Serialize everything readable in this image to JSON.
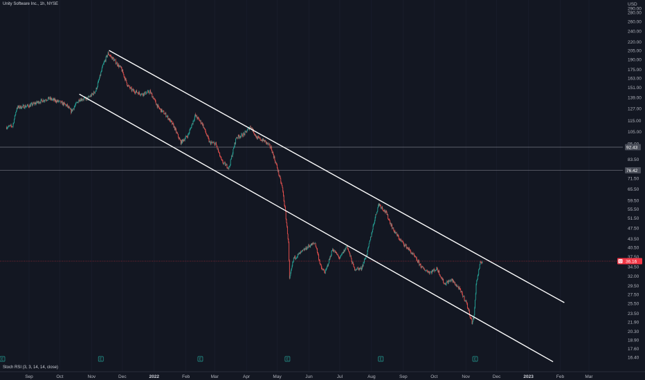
{
  "header": {
    "title": "Unity Software Inc., 1h, NYSE"
  },
  "indicator": {
    "label": "Stoch RSI (3, 3, 14, 14, close)"
  },
  "colors": {
    "background": "#131722",
    "up": "#26a69a",
    "down": "#ef5350",
    "trendline": "#ffffff",
    "priceTag": "#f23645",
    "hline": "#787b86"
  },
  "chart_data": {
    "type": "candlestick",
    "symbol": "Unity Software Inc.",
    "interval": "1h",
    "exchange": "NYSE",
    "currency": "USD",
    "y_scale": "log",
    "ylim": [
      15.8,
      290
    ],
    "y_ticks": [
      "290.00",
      "280.00",
      "260.00",
      "240.00",
      "220.00",
      "205.00",
      "190.00",
      "175.00",
      "163.00",
      "151.00",
      "139.00",
      "127.00",
      "115.00",
      "105.00",
      "95.00",
      "83.50",
      "76.50",
      "71.50",
      "65.50",
      "59.50",
      "55.50",
      "51.50",
      "47.50",
      "43.50",
      "40.50",
      "37.50",
      "34.50",
      "32.00",
      "29.50",
      "27.50",
      "25.50",
      "23.50",
      "21.90",
      "20.30",
      "18.90",
      "17.60",
      "16.40"
    ],
    "x_ticks": [
      {
        "label": "Sep",
        "date": "2021-09-01",
        "bold": false
      },
      {
        "label": "Oct",
        "date": "2021-10-01",
        "bold": false
      },
      {
        "label": "Nov",
        "date": "2021-11-01",
        "bold": false
      },
      {
        "label": "Dec",
        "date": "2021-12-01",
        "bold": false
      },
      {
        "label": "2022",
        "date": "2022-01-01",
        "bold": true
      },
      {
        "label": "Feb",
        "date": "2022-02-01",
        "bold": false
      },
      {
        "label": "Mar",
        "date": "2022-03-01",
        "bold": false
      },
      {
        "label": "Apr",
        "date": "2022-04-01",
        "bold": false
      },
      {
        "label": "May",
        "date": "2022-05-01",
        "bold": false
      },
      {
        "label": "Jun",
        "date": "2022-06-01",
        "bold": false
      },
      {
        "label": "Jul",
        "date": "2022-07-01",
        "bold": false
      },
      {
        "label": "Aug",
        "date": "2022-08-01",
        "bold": false
      },
      {
        "label": "Sep",
        "date": "2022-09-01",
        "bold": false
      },
      {
        "label": "Oct",
        "date": "2022-10-01",
        "bold": false
      },
      {
        "label": "Nov",
        "date": "2022-11-01",
        "bold": false
      },
      {
        "label": "Dec",
        "date": "2022-12-01",
        "bold": false
      },
      {
        "label": "2023",
        "date": "2023-01-01",
        "bold": true
      },
      {
        "label": "Feb",
        "date": "2023-02-01",
        "bold": false
      },
      {
        "label": "Mar",
        "date": "2023-03-01",
        "bold": false
      }
    ],
    "price_path": [
      [
        "2021-08-10",
        109
      ],
      [
        "2021-08-16",
        110
      ],
      [
        "2021-08-20",
        128
      ],
      [
        "2021-09-01",
        130
      ],
      [
        "2021-09-10",
        134
      ],
      [
        "2021-09-20",
        138
      ],
      [
        "2021-10-01",
        134
      ],
      [
        "2021-10-08",
        130
      ],
      [
        "2021-10-12",
        124
      ],
      [
        "2021-10-20",
        137
      ],
      [
        "2021-10-28",
        138
      ],
      [
        "2021-11-01",
        142
      ],
      [
        "2021-11-05",
        147
      ],
      [
        "2021-11-08",
        160
      ],
      [
        "2021-11-12",
        181
      ],
      [
        "2021-11-17",
        200
      ],
      [
        "2021-11-22",
        191
      ],
      [
        "2021-11-30",
        176
      ],
      [
        "2021-12-06",
        154
      ],
      [
        "2021-12-10",
        148
      ],
      [
        "2021-12-20",
        143
      ],
      [
        "2021-12-28",
        146
      ],
      [
        "2022-01-05",
        128
      ],
      [
        "2022-01-13",
        120
      ],
      [
        "2022-01-20",
        110
      ],
      [
        "2022-01-27",
        96
      ],
      [
        "2022-02-03",
        102
      ],
      [
        "2022-02-10",
        120
      ],
      [
        "2022-02-17",
        112
      ],
      [
        "2022-02-24",
        96
      ],
      [
        "2022-03-02",
        95
      ],
      [
        "2022-03-08",
        82
      ],
      [
        "2022-03-15",
        78
      ],
      [
        "2022-03-22",
        100
      ],
      [
        "2022-03-30",
        103
      ],
      [
        "2022-04-05",
        110
      ],
      [
        "2022-04-11",
        100
      ],
      [
        "2022-04-19",
        97
      ],
      [
        "2022-04-25",
        92
      ],
      [
        "2022-05-01",
        78
      ],
      [
        "2022-05-06",
        66
      ],
      [
        "2022-05-09",
        54
      ],
      [
        "2022-05-12",
        42
      ],
      [
        "2022-05-13",
        31
      ],
      [
        "2022-05-17",
        37
      ],
      [
        "2022-05-25",
        39
      ],
      [
        "2022-06-01",
        41
      ],
      [
        "2022-06-07",
        42
      ],
      [
        "2022-06-13",
        34
      ],
      [
        "2022-06-17",
        33
      ],
      [
        "2022-06-24",
        40
      ],
      [
        "2022-07-01",
        37
      ],
      [
        "2022-07-08",
        41
      ],
      [
        "2022-07-15",
        34
      ],
      [
        "2022-07-22",
        34
      ],
      [
        "2022-07-28",
        39
      ],
      [
        "2022-08-04",
        51
      ],
      [
        "2022-08-08",
        58
      ],
      [
        "2022-08-15",
        54
      ],
      [
        "2022-08-22",
        47
      ],
      [
        "2022-08-29",
        43
      ],
      [
        "2022-09-06",
        40
      ],
      [
        "2022-09-13",
        37
      ],
      [
        "2022-09-20",
        34
      ],
      [
        "2022-09-27",
        33
      ],
      [
        "2022-10-04",
        34
      ],
      [
        "2022-10-11",
        30
      ],
      [
        "2022-10-18",
        31
      ],
      [
        "2022-10-25",
        29
      ],
      [
        "2022-11-01",
        26
      ],
      [
        "2022-11-07",
        21.8
      ],
      [
        "2022-11-09",
        23
      ],
      [
        "2022-11-11",
        30
      ],
      [
        "2022-11-15",
        35.5
      ],
      [
        "2022-11-17",
        36.3
      ]
    ],
    "trendlines": [
      {
        "name": "upper channel",
        "from": [
          "2021-11-18",
          205
        ],
        "to": [
          "2023-02-05",
          25.7
        ]
      },
      {
        "name": "lower channel",
        "from": [
          "2021-10-20",
          143
        ],
        "to": [
          "2023-01-25",
          15.8
        ]
      }
    ],
    "horizontal_lines": [
      92.43,
      76.42
    ],
    "price_labels": [
      {
        "value": "92.43",
        "kind": "level"
      },
      {
        "value": "76.42",
        "kind": "level"
      },
      {
        "value": "36.16",
        "kind": "last",
        "badge": "U"
      }
    ],
    "earnings_marker_label": "E",
    "earnings_dates": [
      "2021-08-06",
      "2021-11-10",
      "2022-02-15",
      "2022-05-11",
      "2022-08-10",
      "2022-11-10"
    ]
  }
}
